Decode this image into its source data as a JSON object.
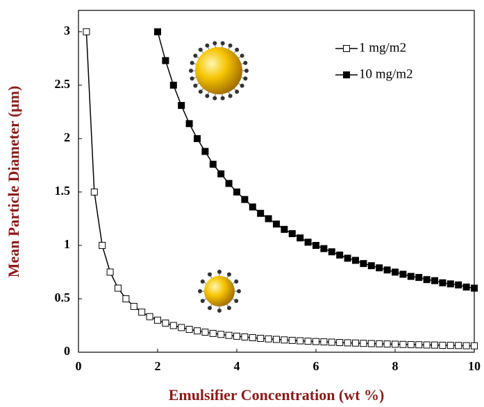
{
  "chart_data": {
    "type": "line",
    "x_label": "Emulsifier Concentration (wt %)",
    "y_label": "Mean Particle Diameter (μm)",
    "xlim": [
      0,
      10
    ],
    "xticks": [
      0,
      2,
      4,
      6,
      8,
      10
    ],
    "ylim": [
      0,
      3.2
    ],
    "yticks": [
      0,
      0.5,
      1,
      1.5,
      2,
      2.5,
      3
    ],
    "legend": "upper right",
    "series": [
      {
        "name": "1 mg/m2",
        "color": "#000000",
        "marker_fill": "#ffffff",
        "x": [
          0.2,
          0.4,
          0.6,
          0.8,
          1,
          1.2,
          1.4,
          1.6,
          1.8,
          2,
          2.2,
          2.4,
          2.6,
          2.8,
          3,
          3.2,
          3.4,
          3.6,
          3.8,
          4,
          4.2,
          4.4,
          4.6,
          4.8,
          5,
          5.2,
          5.4,
          5.6,
          5.8,
          6,
          6.2,
          6.4,
          6.6,
          6.8,
          7,
          7.2,
          7.4,
          7.6,
          7.8,
          8,
          8.2,
          8.4,
          8.6,
          8.8,
          9,
          9.2,
          9.4,
          9.6,
          9.8,
          10
        ],
        "values": [
          3,
          1.5,
          1,
          0.75,
          0.6,
          0.5,
          0.429,
          0.375,
          0.333,
          0.3,
          0.273,
          0.25,
          0.231,
          0.214,
          0.2,
          0.188,
          0.176,
          0.167,
          0.158,
          0.15,
          0.143,
          0.136,
          0.13,
          0.125,
          0.12,
          0.115,
          0.111,
          0.107,
          0.103,
          0.1,
          0.097,
          0.094,
          0.091,
          0.088,
          0.086,
          0.083,
          0.081,
          0.079,
          0.077,
          0.075,
          0.073,
          0.071,
          0.07,
          0.068,
          0.067,
          0.065,
          0.064,
          0.063,
          0.061,
          0.06
        ]
      },
      {
        "name": "10 mg/m2",
        "color": "#000000",
        "marker_fill": "#000000",
        "x": [
          2,
          2.2,
          2.4,
          2.6,
          2.8,
          3,
          3.2,
          3.4,
          3.6,
          3.8,
          4,
          4.2,
          4.4,
          4.6,
          4.8,
          5,
          5.2,
          5.4,
          5.6,
          5.8,
          6,
          6.2,
          6.4,
          6.6,
          6.8,
          7,
          7.2,
          7.4,
          7.6,
          7.8,
          8,
          8.2,
          8.4,
          8.6,
          8.8,
          9,
          9.2,
          9.4,
          9.6,
          9.8,
          10
        ],
        "values": [
          3,
          2.73,
          2.5,
          2.31,
          2.14,
          2,
          1.88,
          1.76,
          1.67,
          1.58,
          1.5,
          1.43,
          1.36,
          1.3,
          1.25,
          1.2,
          1.15,
          1.11,
          1.07,
          1.03,
          1,
          0.97,
          0.94,
          0.91,
          0.88,
          0.86,
          0.83,
          0.81,
          0.79,
          0.77,
          0.75,
          0.73,
          0.71,
          0.7,
          0.68,
          0.67,
          0.65,
          0.64,
          0.63,
          0.61,
          0.6
        ]
      }
    ]
  }
}
